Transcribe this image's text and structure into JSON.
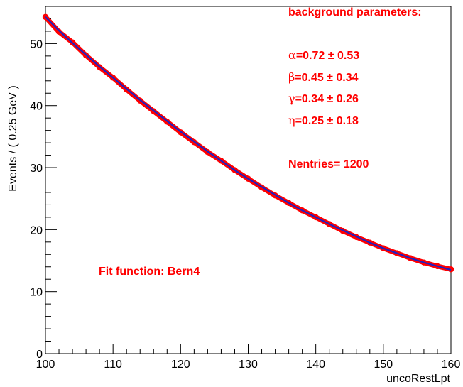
{
  "chart_data": {
    "type": "scatter",
    "title": "",
    "xlabel": "uncoRestLpt",
    "ylabel": "Events / ( 0.25 GeV )",
    "xlim": [
      100,
      160
    ],
    "ylim": [
      0,
      56
    ],
    "x_ticks": [
      "100",
      "110",
      "120",
      "130",
      "140",
      "150",
      "160"
    ],
    "y_ticks": [
      "0",
      "10",
      "20",
      "30",
      "40",
      "50"
    ],
    "grid": false,
    "legend": "none",
    "series": [
      {
        "kind": "points",
        "color": "#ff0000",
        "x": [
          100,
          102,
          104,
          106,
          108,
          110,
          112,
          114,
          116,
          118,
          120,
          122,
          124,
          126,
          128,
          130,
          132,
          134,
          136,
          138,
          140,
          142,
          144,
          146,
          148,
          150,
          152,
          154,
          156,
          158,
          160
        ],
        "y": [
          54.3,
          51.9,
          50.2,
          48.1,
          46.2,
          44.5,
          42.6,
          40.8,
          39.1,
          37.4,
          35.7,
          34.1,
          32.5,
          31.1,
          29.6,
          28.2,
          26.8,
          25.5,
          24.3,
          23.1,
          22.0,
          20.9,
          19.8,
          18.8,
          17.9,
          17.0,
          16.2,
          15.4,
          14.7,
          14.1,
          13.6
        ]
      },
      {
        "kind": "line",
        "color": "#2020c0",
        "x": [
          100,
          102,
          104,
          106,
          108,
          110,
          112,
          114,
          116,
          118,
          120,
          122,
          124,
          126,
          128,
          130,
          132,
          134,
          136,
          138,
          140,
          142,
          144,
          146,
          148,
          150,
          152,
          154,
          156,
          158,
          160
        ],
        "y": [
          54.3,
          52.1,
          50.1,
          48.2,
          46.3,
          44.5,
          42.7,
          40.9,
          39.2,
          37.5,
          35.8,
          34.2,
          32.6,
          31.1,
          29.6,
          28.2,
          26.9,
          25.6,
          24.3,
          23.1,
          22.0,
          20.9,
          19.9,
          18.9,
          17.9,
          17.0,
          16.2,
          15.4,
          14.7,
          14.1,
          13.5
        ]
      }
    ]
  },
  "annotations": {
    "header": "background parameters:",
    "alpha_symbol": "α",
    "alpha_text": "=0.72 ± 0.53",
    "beta_symbol": "β",
    "beta_text": "=0.45 ± 0.34",
    "gamma_symbol": "γ",
    "gamma_text": "=0.34 ± 0.26",
    "eta_symbol": "η",
    "eta_text": "=0.25 ± 0.18",
    "entries": "Nentries= 1200",
    "fit": "Fit function: Bern4"
  }
}
